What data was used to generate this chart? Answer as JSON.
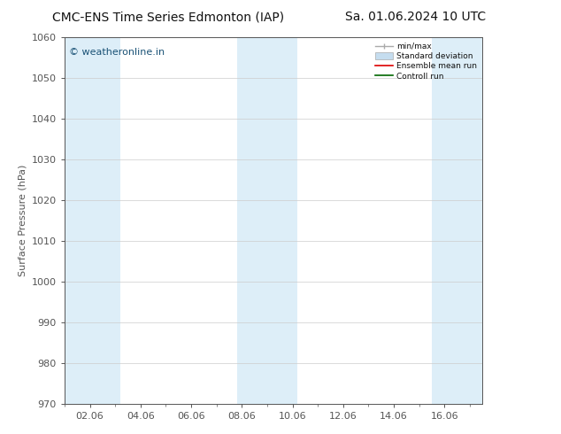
{
  "title_left": "CMC-ENS Time Series Edmonton (IAP)",
  "title_right": "Sa. 01.06.2024 10 UTC",
  "ylabel": "Surface Pressure (hPa)",
  "ylim": [
    970,
    1060
  ],
  "yticks": [
    970,
    980,
    990,
    1000,
    1010,
    1020,
    1030,
    1040,
    1050,
    1060
  ],
  "xlim_start": 1.0,
  "xlim_end": 17.5,
  "xtick_labels": [
    "02.06",
    "04.06",
    "06.06",
    "08.06",
    "10.06",
    "12.06",
    "14.06",
    "16.06"
  ],
  "xtick_positions": [
    2,
    4,
    6,
    8,
    10,
    12,
    14,
    16
  ],
  "shaded_bands": [
    {
      "x_start": 1.0,
      "x_end": 3.2
    },
    {
      "x_start": 7.8,
      "x_end": 10.2
    },
    {
      "x_start": 15.5,
      "x_end": 17.5
    }
  ],
  "shaded_band_color": "#ddeef8",
  "background_color": "#ffffff",
  "plot_background": "#ffffff",
  "watermark_text": "© weatheronline.in",
  "watermark_color": "#1a5276",
  "legend_entries": [
    "min/max",
    "Standard deviation",
    "Ensemble mean run",
    "Controll run"
  ],
  "axis_color": "#555555",
  "tick_color": "#555555",
  "grid_color": "#cccccc",
  "title_fontsize": 10,
  "label_fontsize": 8,
  "tick_fontsize": 8
}
